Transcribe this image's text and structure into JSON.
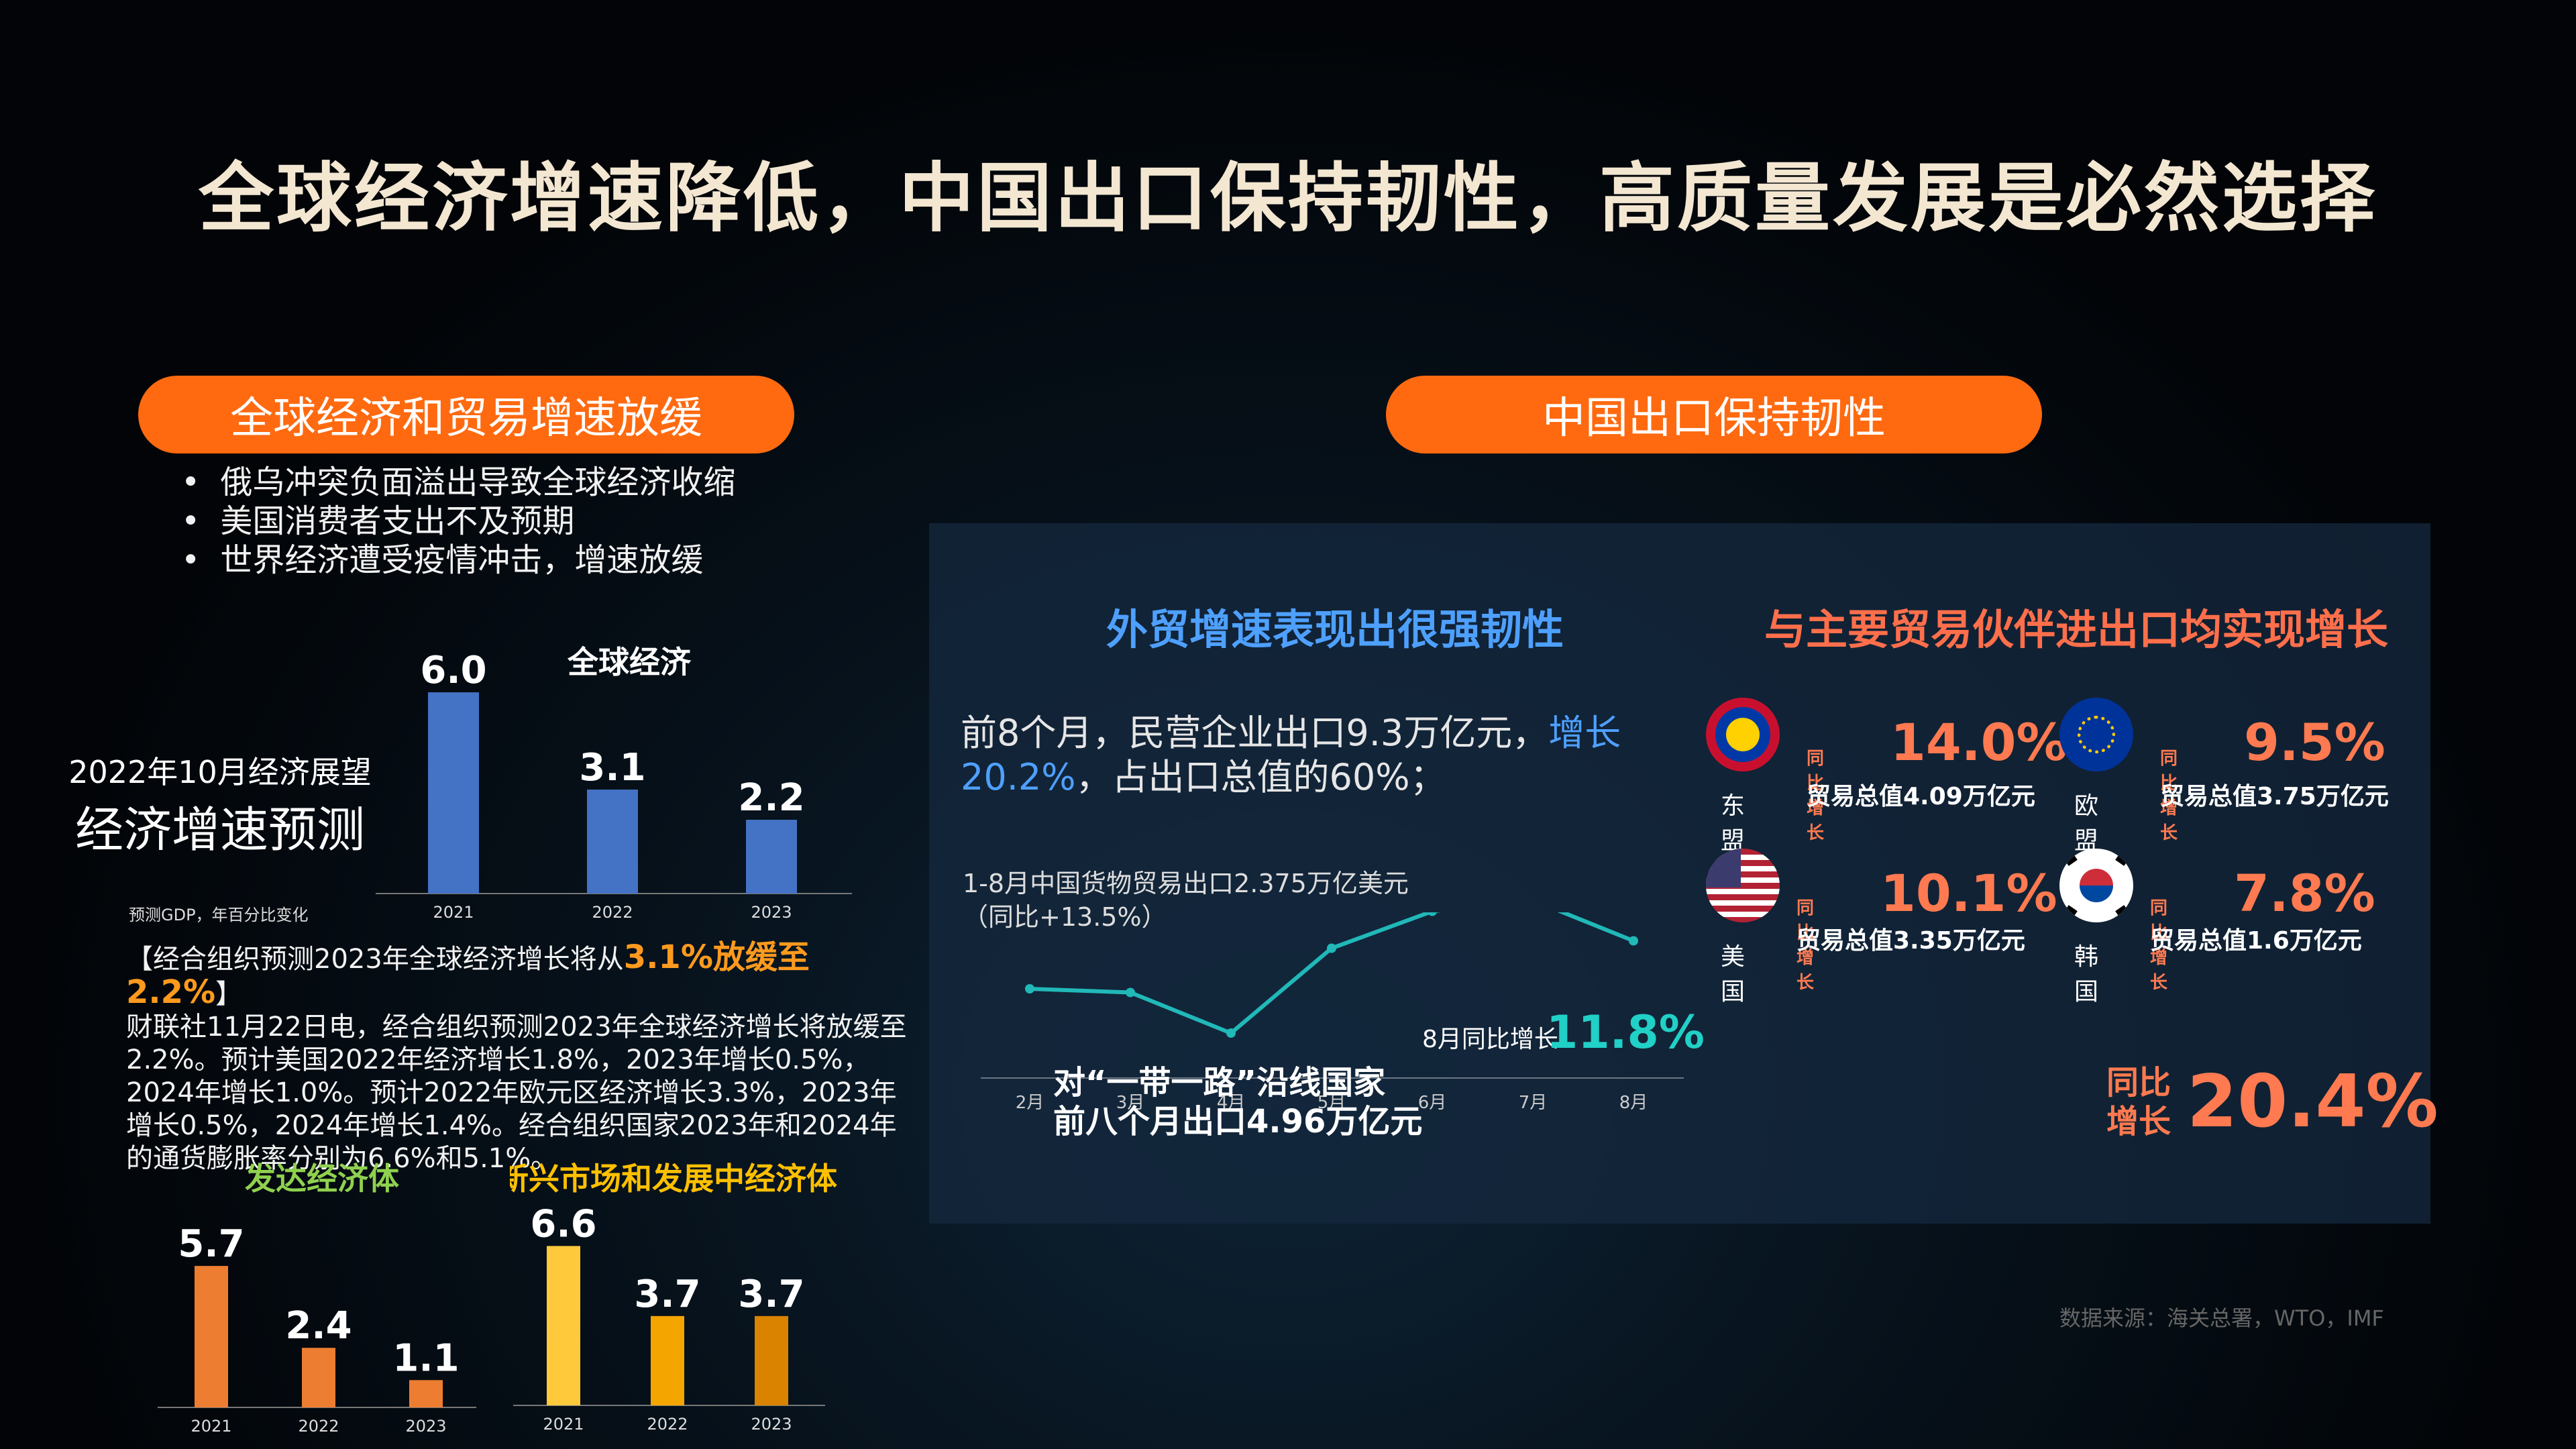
{
  "title": "全球经济增速降低，中国出口保持韧性，高质量发展是必然选择",
  "left_pill": "全球经济和贸易增速放缓",
  "right_pill": "中国出口保持韧性",
  "bullets": [
    "俄乌冲突负面溢出导致全球经济收缩",
    "美国消费者支出不及预期",
    "世界经济遭受疫情冲击，增速放缓"
  ],
  "outlook": {
    "line1": "2022年10月经济展望",
    "line2": "经济增速预测",
    "note": "预测GDP，年百分比变化"
  },
  "news": {
    "pre": "【经合组织预测2023年全球经济增长将从",
    "highlight": "3.1%放缓至2.2%",
    "post": "】",
    "body": "财联社11月22日电，经合组织预测2023年全球经济增长将放缓至2.2%。预计美国2022年经济增长1.8%，2023年增长0.5%，2024年增长1.0%。预计2022年欧元区经济增长3.3%，2023年增长0.5%，2024年增长1.4%。经合组织国家2023年和2024年的通货膨胀率分别为6.6%和5.1%。"
  },
  "right": {
    "heading_left": "外贸增速表现出很强韧性",
    "heading_right": "与主要贸易伙伴进出口均实现增长",
    "text_pre": "前8个月，民营企业出口9.3万亿元，",
    "text_hl": "增长",
    "text_hl2": "20.2%",
    "text_post": "，占出口总值的60%；",
    "chart_caption1": "1-8月中国货物贸易出口2.375万亿美元",
    "chart_caption2": "（同比+13.5%）",
    "aug_label": "8月同比增长",
    "aug_value": "11.8%",
    "partners": [
      {
        "name": "东盟",
        "tag": "同比增长",
        "pct": "14.0%",
        "total": "贸易总值4.09万亿元"
      },
      {
        "name": "欧盟",
        "tag": "同比增长",
        "pct": "9.5%",
        "total": "贸易总值3.75万亿元"
      },
      {
        "name": "美国",
        "tag": "同比增长",
        "pct": "10.1%",
        "total": "贸易总值3.35万亿元"
      },
      {
        "name": "韩国",
        "tag": "同比增长",
        "pct": "7.8%",
        "total": "贸易总值1.6万亿元"
      }
    ],
    "belt_line1": "对“一带一路”沿线国家",
    "belt_line2": "前八个月出口4.96万亿元",
    "belt_tag1": "同比",
    "belt_tag2": "增长",
    "belt_value": "20.4%"
  },
  "source": "数据来源：海关总署，WTO，IMF",
  "colors": {
    "accent": "#ff6a10",
    "bar_blue": "#4472c4",
    "bar_orange": "#ed7d31",
    "bar_yellow": "#ffc000",
    "line": "#21b8b8",
    "coral": "#ff7a50",
    "blue_text": "#4ea0ff"
  },
  "chart_data": [
    {
      "type": "bar",
      "title": "全球经济",
      "categories": [
        "2021",
        "2022",
        "2023"
      ],
      "values": [
        6.0,
        3.1,
        2.2
      ],
      "labels": [
        "6.0",
        "3.1",
        "2.2"
      ],
      "color": "#4472c4"
    },
    {
      "type": "bar",
      "title": "发达经济体",
      "categories": [
        "2021",
        "2022",
        "2023"
      ],
      "values": [
        5.7,
        2.4,
        1.1
      ],
      "labels": [
        "5.7",
        "2.4",
        "1.1"
      ],
      "color": "#ed7d31"
    },
    {
      "type": "bar",
      "title": "新兴市场和发展中经济体",
      "categories": [
        "2021",
        "2022",
        "2023"
      ],
      "values": [
        6.6,
        3.7,
        3.7
      ],
      "labels": [
        "6.6",
        "3.7",
        "3.7"
      ],
      "colors": [
        "#ffc93c",
        "#f5a500",
        "#d98300"
      ]
    },
    {
      "type": "line",
      "categories": [
        "2月",
        "3月",
        "4月",
        "5月",
        "6月",
        "7月",
        "8月"
      ],
      "values": [
        16,
        15,
        4,
        27,
        37,
        40,
        29
      ],
      "color": "#21b8b8"
    }
  ]
}
